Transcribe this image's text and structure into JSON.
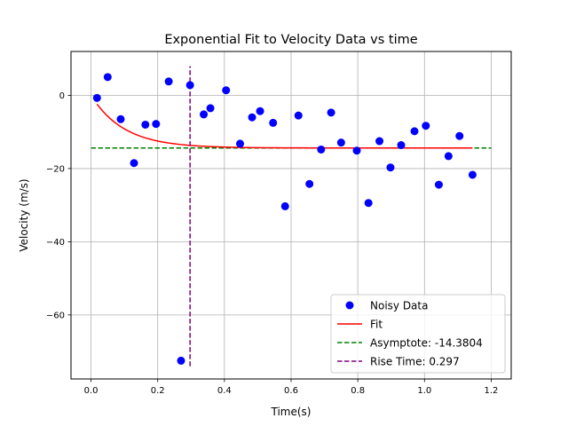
{
  "chart_data": {
    "type": "scatter",
    "title": "Exponential Fit to Velocity Data vs time",
    "xlabel": "Time(s)",
    "ylabel": "Velocity (m/s)",
    "xlim": [
      -0.06,
      1.26
    ],
    "ylim": [
      -77.5,
      12
    ],
    "x_ticks": [
      0.0,
      0.2,
      0.4,
      0.6,
      0.8,
      1.0,
      1.2
    ],
    "x_tick_labels": [
      "0.0",
      "0.2",
      "0.4",
      "0.6",
      "0.8",
      "1.0",
      "1.2"
    ],
    "y_ticks": [
      0,
      -20,
      -40,
      -60
    ],
    "y_tick_labels": [
      "0",
      "−20",
      "−40",
      "−60"
    ],
    "grid": true,
    "legend_position": "lower-right",
    "series": [
      {
        "name": "Noisy Data",
        "kind": "scatter",
        "color": "#0000ff",
        "x": [
          0.018,
          0.05,
          0.089,
          0.129,
          0.163,
          0.195,
          0.233,
          0.27,
          0.297,
          0.338,
          0.358,
          0.405,
          0.447,
          0.483,
          0.507,
          0.546,
          0.582,
          0.622,
          0.655,
          0.69,
          0.72,
          0.75,
          0.797,
          0.832,
          0.865,
          0.898,
          0.93,
          0.97,
          1.004,
          1.043,
          1.072,
          1.105,
          1.144
        ],
        "y": [
          -0.7,
          5.0,
          -6.5,
          -18.5,
          -8.0,
          -7.8,
          3.8,
          -72.5,
          2.8,
          -5.2,
          -3.5,
          1.4,
          -13.2,
          -6.0,
          -4.3,
          -7.5,
          -30.3,
          -5.5,
          -24.2,
          -14.8,
          -4.7,
          -12.9,
          -15.1,
          -29.4,
          -12.5,
          -19.7,
          -13.6,
          -9.8,
          -8.3,
          -24.4,
          -16.6,
          -11.1,
          -21.7
        ]
      },
      {
        "name": "Fit",
        "kind": "line",
        "color": "#ff0000",
        "asymptote": -14.3804,
        "rise_time": 0.297,
        "x_range": [
          0.018,
          1.144
        ]
      },
      {
        "name": "Asymptote: -14.3804",
        "kind": "hline",
        "color": "#008000",
        "y": -14.3804,
        "x_range": [
          0.0,
          1.2
        ]
      },
      {
        "name": "Rise Time: 0.297",
        "kind": "vline",
        "color": "#800080",
        "x": 0.297,
        "y_range": [
          -74,
          8
        ]
      }
    ]
  }
}
